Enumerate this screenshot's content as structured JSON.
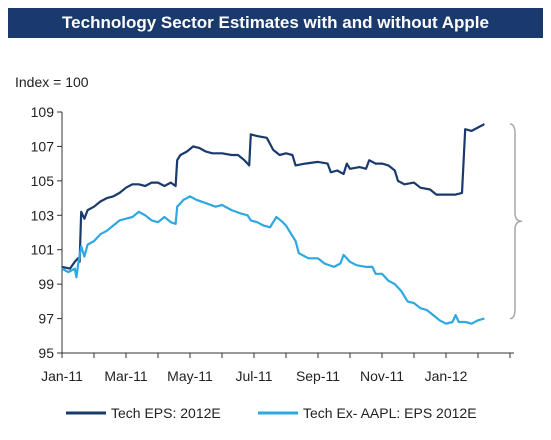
{
  "chart_data": {
    "type": "line",
    "title": "Technology Sector Estimates with and without Apple",
    "ylabel": "Index = 100",
    "xlabel": "",
    "ylim": [
      95,
      109
    ],
    "yticks": [
      95,
      97,
      99,
      101,
      103,
      105,
      107,
      109
    ],
    "categories": [
      "Jan-11",
      "Mar-11",
      "May-11",
      "Jul-11",
      "Sep-11",
      "Nov-11",
      "Jan-12"
    ],
    "x_range_months": [
      0,
      14.5
    ],
    "grid": false,
    "legend_position": "bottom",
    "annotation": "brace spanning gap between series at right end",
    "series": [
      {
        "name": "Tech EPS: 2012E",
        "color": "#1a3a6e",
        "points": [
          [
            0.0,
            100.0
          ],
          [
            0.25,
            99.9
          ],
          [
            0.4,
            100.3
          ],
          [
            0.5,
            100.5
          ],
          [
            0.55,
            100.3
          ],
          [
            0.6,
            103.2
          ],
          [
            0.7,
            102.8
          ],
          [
            0.8,
            103.3
          ],
          [
            1.0,
            103.5
          ],
          [
            1.2,
            103.8
          ],
          [
            1.4,
            104.0
          ],
          [
            1.6,
            104.1
          ],
          [
            1.8,
            104.3
          ],
          [
            2.0,
            104.6
          ],
          [
            2.2,
            104.8
          ],
          [
            2.4,
            104.8
          ],
          [
            2.6,
            104.7
          ],
          [
            2.8,
            104.9
          ],
          [
            3.0,
            104.9
          ],
          [
            3.2,
            104.7
          ],
          [
            3.4,
            104.9
          ],
          [
            3.55,
            104.7
          ],
          [
            3.6,
            106.2
          ],
          [
            3.7,
            106.5
          ],
          [
            3.9,
            106.7
          ],
          [
            4.1,
            107.0
          ],
          [
            4.3,
            106.9
          ],
          [
            4.5,
            106.7
          ],
          [
            4.7,
            106.6
          ],
          [
            5.0,
            106.6
          ],
          [
            5.3,
            106.5
          ],
          [
            5.5,
            106.5
          ],
          [
            5.7,
            106.2
          ],
          [
            5.85,
            105.9
          ],
          [
            5.9,
            107.7
          ],
          [
            6.1,
            107.6
          ],
          [
            6.4,
            107.5
          ],
          [
            6.6,
            106.8
          ],
          [
            6.8,
            106.5
          ],
          [
            7.0,
            106.6
          ],
          [
            7.2,
            106.5
          ],
          [
            7.3,
            105.9
          ],
          [
            7.6,
            106.0
          ],
          [
            8.0,
            106.1
          ],
          [
            8.3,
            106.0
          ],
          [
            8.4,
            105.5
          ],
          [
            8.6,
            105.6
          ],
          [
            8.8,
            105.4
          ],
          [
            8.9,
            106.0
          ],
          [
            9.0,
            105.7
          ],
          [
            9.3,
            105.8
          ],
          [
            9.5,
            105.7
          ],
          [
            9.6,
            106.2
          ],
          [
            9.8,
            106.0
          ],
          [
            10.0,
            106.0
          ],
          [
            10.2,
            105.9
          ],
          [
            10.4,
            105.6
          ],
          [
            10.5,
            105.0
          ],
          [
            10.7,
            104.8
          ],
          [
            11.0,
            104.9
          ],
          [
            11.2,
            104.6
          ],
          [
            11.5,
            104.5
          ],
          [
            11.7,
            104.2
          ],
          [
            12.0,
            104.2
          ],
          [
            12.3,
            104.2
          ],
          [
            12.5,
            104.3
          ],
          [
            12.6,
            108.0
          ],
          [
            12.8,
            107.9
          ],
          [
            13.0,
            108.1
          ],
          [
            13.2,
            108.3
          ]
        ]
      },
      {
        "name": "Tech Ex- AAPL: EPS 2012E",
        "color": "#2ea8e0",
        "points": [
          [
            0.0,
            99.9
          ],
          [
            0.2,
            99.7
          ],
          [
            0.4,
            99.9
          ],
          [
            0.45,
            99.4
          ],
          [
            0.5,
            100.1
          ],
          [
            0.6,
            101.2
          ],
          [
            0.7,
            100.6
          ],
          [
            0.8,
            101.3
          ],
          [
            1.0,
            101.5
          ],
          [
            1.2,
            101.9
          ],
          [
            1.4,
            102.1
          ],
          [
            1.6,
            102.4
          ],
          [
            1.8,
            102.7
          ],
          [
            2.0,
            102.8
          ],
          [
            2.2,
            102.9
          ],
          [
            2.4,
            103.2
          ],
          [
            2.6,
            103.0
          ],
          [
            2.8,
            102.7
          ],
          [
            3.0,
            102.6
          ],
          [
            3.2,
            102.9
          ],
          [
            3.4,
            102.6
          ],
          [
            3.55,
            102.5
          ],
          [
            3.6,
            103.5
          ],
          [
            3.8,
            103.9
          ],
          [
            4.0,
            104.1
          ],
          [
            4.2,
            103.9
          ],
          [
            4.5,
            103.7
          ],
          [
            4.8,
            103.5
          ],
          [
            5.0,
            103.6
          ],
          [
            5.3,
            103.3
          ],
          [
            5.6,
            103.1
          ],
          [
            5.8,
            103.0
          ],
          [
            5.9,
            102.7
          ],
          [
            6.1,
            102.6
          ],
          [
            6.3,
            102.4
          ],
          [
            6.5,
            102.3
          ],
          [
            6.7,
            102.9
          ],
          [
            6.9,
            102.6
          ],
          [
            7.0,
            102.4
          ],
          [
            7.2,
            101.8
          ],
          [
            7.3,
            101.5
          ],
          [
            7.4,
            100.8
          ],
          [
            7.7,
            100.5
          ],
          [
            8.0,
            100.5
          ],
          [
            8.2,
            100.2
          ],
          [
            8.5,
            100.0
          ],
          [
            8.7,
            100.2
          ],
          [
            8.8,
            100.7
          ],
          [
            9.0,
            100.3
          ],
          [
            9.2,
            100.1
          ],
          [
            9.5,
            100.0
          ],
          [
            9.7,
            100.0
          ],
          [
            9.8,
            99.6
          ],
          [
            10.0,
            99.6
          ],
          [
            10.2,
            99.2
          ],
          [
            10.4,
            99.0
          ],
          [
            10.6,
            98.6
          ],
          [
            10.8,
            98.0
          ],
          [
            11.0,
            97.9
          ],
          [
            11.2,
            97.6
          ],
          [
            11.4,
            97.5
          ],
          [
            11.6,
            97.2
          ],
          [
            11.8,
            96.9
          ],
          [
            12.0,
            96.7
          ],
          [
            12.2,
            96.8
          ],
          [
            12.3,
            97.2
          ],
          [
            12.4,
            96.8
          ],
          [
            12.6,
            96.8
          ],
          [
            12.8,
            96.7
          ],
          [
            13.0,
            96.9
          ],
          [
            13.2,
            97.0
          ]
        ]
      }
    ]
  }
}
